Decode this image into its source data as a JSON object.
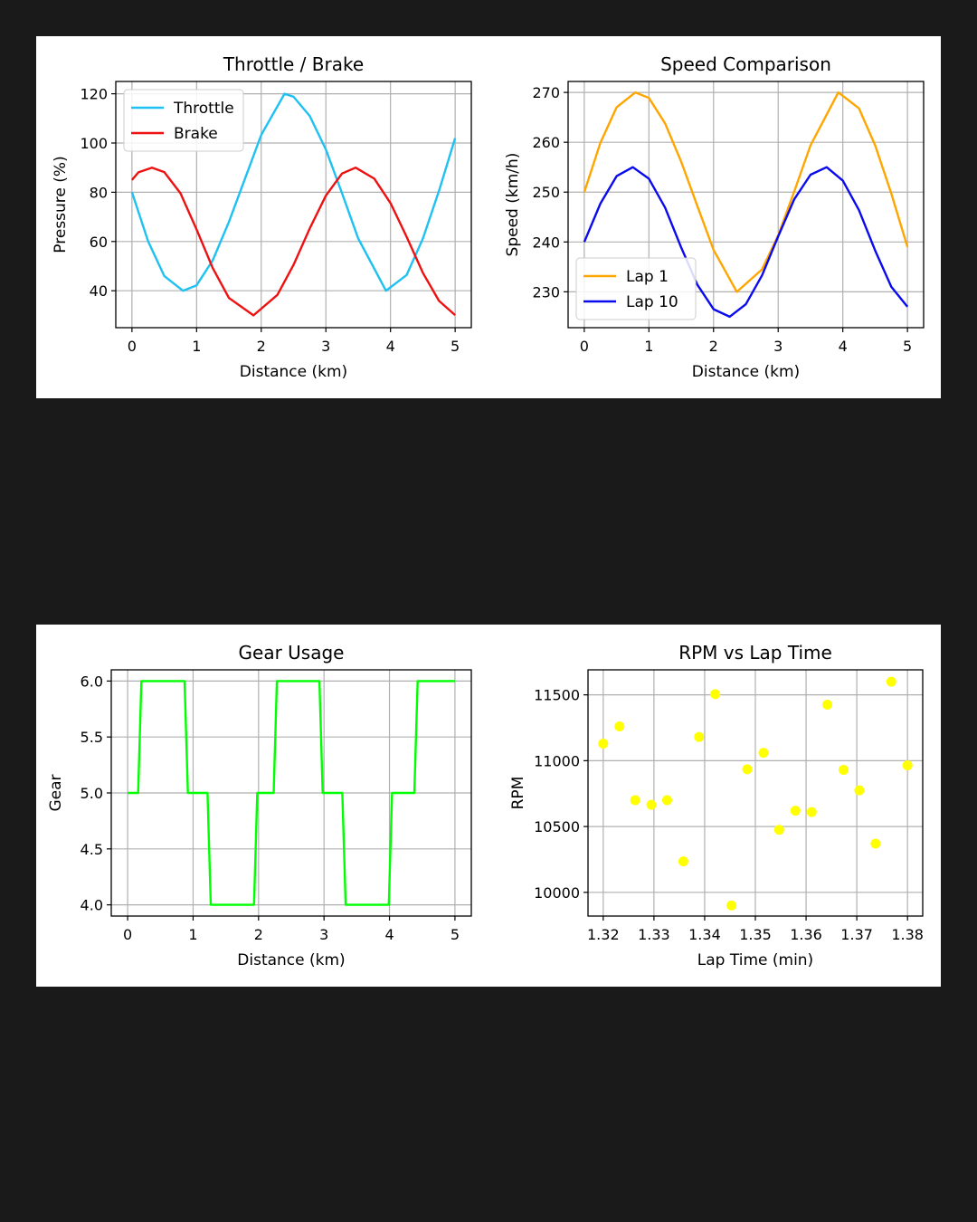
{
  "chart_data": [
    {
      "id": "throttle-brake",
      "type": "line",
      "title": "Throttle / Brake",
      "xlabel": "Distance (km)",
      "ylabel": "Pressure (%)",
      "xlim": [
        -0.25,
        5.25
      ],
      "ylim": [
        25,
        125
      ],
      "xticks": [
        0,
        1,
        2,
        3,
        4,
        5
      ],
      "yticks": [
        40,
        60,
        80,
        100,
        120
      ],
      "grid": true,
      "legend": "upper left",
      "series": [
        {
          "name": "Throttle",
          "color": "#1ec1f2",
          "x": [
            0,
            0.25,
            0.5,
            0.79,
            1.0,
            1.25,
            1.5,
            1.75,
            2.0,
            2.36,
            2.5,
            2.75,
            3.0,
            3.25,
            3.5,
            3.93,
            4.25,
            4.5,
            4.75,
            5.0
          ],
          "y": [
            80,
            60.1,
            46.0,
            40.0,
            42.2,
            52.4,
            67.9,
            85.6,
            103.3,
            120.0,
            118.8,
            111.0,
            97.4,
            79.6,
            61.2,
            40.0,
            46.4,
            61.1,
            80.6,
            102.0
          ]
        },
        {
          "name": "Brake",
          "color": "#ee1111",
          "x": [
            0,
            0.1,
            0.31,
            0.5,
            0.75,
            1.0,
            1.25,
            1.5,
            1.88,
            2.25,
            2.5,
            2.75,
            3.0,
            3.25,
            3.46,
            3.75,
            4.0,
            4.25,
            4.5,
            4.75,
            5.0
          ],
          "y": [
            85,
            88.1,
            90.0,
            88.2,
            79.6,
            64.9,
            49.2,
            37.1,
            30.0,
            38.3,
            50.5,
            65.3,
            78.6,
            87.6,
            90.0,
            85.5,
            75.6,
            61.9,
            47.3,
            35.9,
            30.1
          ]
        }
      ]
    },
    {
      "id": "speed-comparison",
      "type": "line",
      "title": "Speed Comparison",
      "xlabel": "Distance (km)",
      "ylabel": "Speed (km/h)",
      "xlim": [
        -0.25,
        5.25
      ],
      "ylim": [
        222.8,
        272.2
      ],
      "xticks": [
        0,
        1,
        2,
        3,
        4,
        5
      ],
      "yticks": [
        230,
        240,
        250,
        260,
        270
      ],
      "grid": true,
      "legend": "lower left",
      "series": [
        {
          "name": "Lap 1",
          "color": "#ffa500",
          "x": [
            0,
            0.25,
            0.5,
            0.79,
            1.0,
            1.25,
            1.5,
            1.75,
            2.0,
            2.36,
            2.75,
            3.0,
            3.25,
            3.5,
            3.93,
            4.25,
            4.5,
            4.75,
            5.0
          ],
          "y": [
            250,
            259.9,
            267.0,
            270.0,
            268.9,
            263.8,
            256.1,
            247.2,
            238.4,
            230.0,
            234.5,
            241.3,
            250.2,
            259.4,
            270.0,
            266.8,
            259.4,
            249.7,
            239.0
          ]
        },
        {
          "name": "Lap 10",
          "color": "#0a0aee",
          "x": [
            0,
            0.25,
            0.5,
            0.75,
            1.0,
            1.25,
            1.5,
            1.75,
            2.0,
            2.25,
            2.5,
            2.75,
            3.0,
            3.25,
            3.5,
            3.75,
            4.0,
            4.25,
            4.5,
            4.75,
            5.0
          ],
          "y": [
            240,
            247.7,
            253.2,
            255.0,
            252.7,
            246.9,
            238.9,
            231.4,
            226.5,
            225.0,
            227.5,
            233.3,
            241.1,
            248.6,
            253.5,
            255.0,
            252.3,
            246.4,
            238.3,
            231.0,
            227.0
          ]
        }
      ]
    },
    {
      "id": "gear-usage",
      "type": "line",
      "title": "Gear Usage",
      "xlabel": "Distance (km)",
      "ylabel": "Gear",
      "xlim": [
        -0.25,
        5.25
      ],
      "ylim": [
        3.9,
        6.1
      ],
      "xticks": [
        0,
        1,
        2,
        3,
        4,
        5
      ],
      "yticks": [
        4.0,
        4.5,
        5.0,
        5.5,
        6.0
      ],
      "ytick_labels": [
        "4.0",
        "4.5",
        "5.0",
        "5.5",
        "6.0"
      ],
      "grid": true,
      "series": [
        {
          "name": "Gear",
          "color": "#00ff00",
          "x": [
            0,
            0.16,
            0.21,
            0.87,
            0.92,
            1.22,
            1.27,
            1.93,
            1.98,
            2.23,
            2.28,
            2.93,
            2.98,
            3.28,
            3.33,
            3.99,
            4.04,
            4.38,
            4.43,
            5.0
          ],
          "y": [
            5,
            5,
            6,
            6,
            5,
            5,
            4,
            4,
            5,
            5,
            6,
            6,
            5,
            5,
            4,
            4,
            5,
            5,
            6,
            6
          ]
        }
      ]
    },
    {
      "id": "rpm-vs-lap-time",
      "type": "scatter",
      "title": "RPM vs Lap Time",
      "xlabel": "Lap Time (min)",
      "ylabel": "RPM",
      "xlim": [
        1.317,
        1.383
      ],
      "ylim": [
        9820,
        11690
      ],
      "xticks": [
        1.32,
        1.33,
        1.34,
        1.35,
        1.36,
        1.37,
        1.38
      ],
      "yticks": [
        10000,
        10500,
        11000,
        11500
      ],
      "grid": true,
      "series": [
        {
          "color": "#ffff00",
          "x": [
            1.32,
            1.3232,
            1.3263,
            1.3295,
            1.3326,
            1.3358,
            1.3389,
            1.3421,
            1.3453,
            1.3484,
            1.3516,
            1.3547,
            1.3579,
            1.3611,
            1.3642,
            1.3674,
            1.3705,
            1.3737,
            1.3768,
            1.38
          ],
          "y": [
            11130,
            11260,
            10700,
            10665,
            10700,
            10235,
            11180,
            11505,
            9900,
            10935,
            11060,
            10475,
            10620,
            10610,
            11425,
            10930,
            10775,
            10370,
            11600,
            10965
          ]
        }
      ]
    }
  ]
}
